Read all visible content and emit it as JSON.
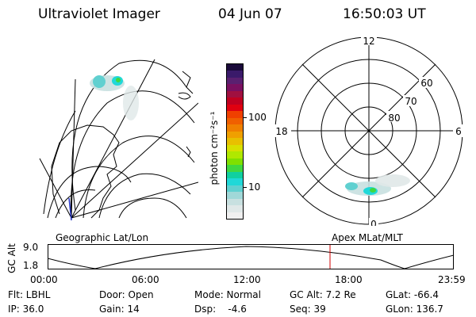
{
  "header": {
    "title": "Ultraviolet Imager",
    "date": "04 Jun 07",
    "time": "16:50:03 UT"
  },
  "colorbar": {
    "unit_label": "photon cm⁻²s⁻¹",
    "ticks": [
      "100",
      "10"
    ],
    "colors": [
      "#1a0a3a",
      "#3a1a6a",
      "#5a2070",
      "#7a1060",
      "#a01040",
      "#c00020",
      "#e00010",
      "#f04000",
      "#f06000",
      "#f08000",
      "#f0a000",
      "#e8c000",
      "#d8e000",
      "#b0e800",
      "#80e000",
      "#40d840",
      "#10d0a0",
      "#20d8d8",
      "#60d0d0",
      "#a0d8d8",
      "#c8e0e0",
      "#e0e8e8",
      "#f0f0f0"
    ]
  },
  "polar_plot": {
    "mlt_labels": [
      "12",
      "18",
      "6",
      "0"
    ],
    "lat_labels": [
      "60",
      "70",
      "80"
    ]
  },
  "timeline": {
    "left_label": "Geographic Lat/Lon",
    "right_label": "Apex MLat/MLT",
    "yaxis_label": "GC Alt",
    "y_ticks": [
      "9.0",
      "1.8"
    ],
    "x_ticks": [
      "00:00",
      "06:00",
      "12:00",
      "18:00",
      "23:59"
    ],
    "current_marker_color": "#d00000"
  },
  "footer": {
    "flt": "Flt: LBHL",
    "ip": "IP: 36.0",
    "door": "Door: Open",
    "gain": "Gain: 14",
    "mode": "Mode: Normal",
    "dsp": "Dsp:    -4.6",
    "gc_alt": "GC Alt: 7.2 Re",
    "seq": "Seq: 39",
    "glat": "GLat: -66.4",
    "glon": "GLon: 136.7"
  }
}
